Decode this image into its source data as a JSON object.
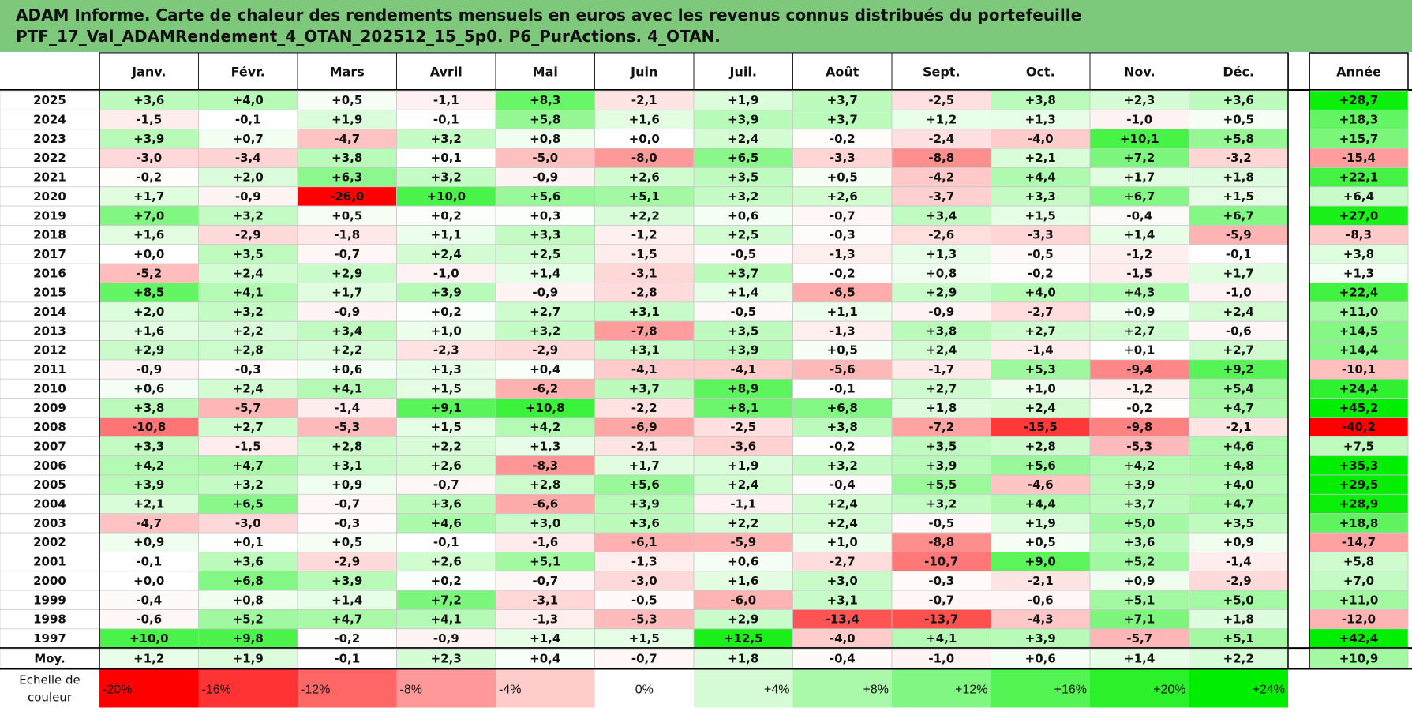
{
  "title_line1": "ADAM Informe. Carte de chaleur des rendements mensuels en euros avec les revenus connus distribués du portefeuille",
  "title_line2": "PTF_17_Val_ADAMRendement_4_OTAN_202512_15_5p0. P6_PurActions. 4_OTAN.",
  "chart_data": {
    "type": "heatmap",
    "months": [
      "Janv.",
      "Févr.",
      "Mars",
      "Avril",
      "Mai",
      "Juin",
      "Juil.",
      "Août",
      "Sept.",
      "Oct.",
      "Nov.",
      "Déc."
    ],
    "year_header": "Année",
    "rows": [
      {
        "label": "2025",
        "months": [
          3.6,
          4.0,
          0.5,
          -1.1,
          8.3,
          -2.1,
          1.9,
          3.7,
          -2.5,
          3.8,
          2.3,
          3.6
        ],
        "year": 28.7
      },
      {
        "label": "2024",
        "months": [
          -1.5,
          -0.1,
          1.9,
          -0.1,
          5.8,
          1.6,
          3.9,
          3.7,
          1.2,
          1.3,
          -1.0,
          0.5
        ],
        "year": 18.3
      },
      {
        "label": "2023",
        "months": [
          3.9,
          0.7,
          -4.7,
          3.2,
          0.8,
          0.0,
          2.4,
          -0.2,
          -2.4,
          -4.0,
          10.1,
          5.8
        ],
        "year": 15.7
      },
      {
        "label": "2022",
        "months": [
          -3.0,
          -3.4,
          3.8,
          0.1,
          -5.0,
          -8.0,
          6.5,
          -3.3,
          -8.8,
          2.1,
          7.2,
          -3.2
        ],
        "year": -15.4
      },
      {
        "label": "2021",
        "months": [
          -0.2,
          2.0,
          6.3,
          3.2,
          -0.9,
          2.6,
          3.5,
          0.5,
          -4.2,
          4.4,
          1.7,
          1.8
        ],
        "year": 22.1
      },
      {
        "label": "2020",
        "months": [
          1.7,
          -0.9,
          -26.0,
          10.0,
          5.6,
          5.1,
          3.2,
          2.6,
          -3.7,
          3.3,
          6.7,
          1.5
        ],
        "year": 6.4
      },
      {
        "label": "2019",
        "months": [
          7.0,
          3.2,
          0.5,
          0.2,
          0.3,
          2.2,
          0.6,
          -0.7,
          3.4,
          1.5,
          -0.4,
          6.7
        ],
        "year": 27.0
      },
      {
        "label": "2018",
        "months": [
          1.6,
          -2.9,
          -1.8,
          1.1,
          3.3,
          -1.2,
          2.5,
          -0.3,
          -2.6,
          -3.3,
          1.4,
          -5.9
        ],
        "year": -8.3
      },
      {
        "label": "2017",
        "months": [
          0.0,
          3.5,
          -0.7,
          2.4,
          2.5,
          -1.5,
          -0.5,
          -1.3,
          1.3,
          -0.5,
          -1.2,
          -0.1
        ],
        "year": 3.8
      },
      {
        "label": "2016",
        "months": [
          -5.2,
          2.4,
          2.9,
          -1.0,
          1.4,
          -3.1,
          3.7,
          -0.2,
          0.8,
          -0.2,
          -1.5,
          1.7
        ],
        "year": 1.3
      },
      {
        "label": "2015",
        "months": [
          8.5,
          4.1,
          1.7,
          3.9,
          -0.9,
          -2.8,
          1.4,
          -6.5,
          2.9,
          4.0,
          4.3,
          -1.0
        ],
        "year": 22.4
      },
      {
        "label": "2014",
        "months": [
          2.0,
          3.2,
          -0.9,
          0.2,
          2.7,
          3.1,
          -0.5,
          1.1,
          -0.9,
          -2.7,
          0.9,
          2.4
        ],
        "year": 11.0
      },
      {
        "label": "2013",
        "months": [
          1.6,
          2.2,
          3.4,
          1.0,
          3.2,
          -7.8,
          3.5,
          -1.3,
          3.8,
          2.7,
          2.7,
          -0.6
        ],
        "year": 14.5
      },
      {
        "label": "2012",
        "months": [
          2.9,
          2.8,
          2.2,
          -2.3,
          -2.9,
          3.1,
          3.9,
          0.5,
          2.4,
          -1.4,
          0.1,
          2.7
        ],
        "year": 14.4
      },
      {
        "label": "2011",
        "months": [
          -0.9,
          -0.3,
          0.6,
          1.3,
          0.4,
          -4.1,
          -4.1,
          -5.6,
          -1.7,
          5.3,
          -9.4,
          9.2
        ],
        "year": -10.1
      },
      {
        "label": "2010",
        "months": [
          0.6,
          2.4,
          4.1,
          1.5,
          -6.2,
          3.7,
          8.9,
          -0.1,
          2.7,
          1.0,
          -1.2,
          5.4
        ],
        "year": 24.4
      },
      {
        "label": "2009",
        "months": [
          3.8,
          -5.7,
          -1.4,
          9.1,
          10.8,
          -2.2,
          8.1,
          6.8,
          1.8,
          2.4,
          -0.2,
          4.7
        ],
        "year": 45.2
      },
      {
        "label": "2008",
        "months": [
          -10.8,
          2.7,
          -5.3,
          1.5,
          4.2,
          -6.9,
          -2.5,
          3.8,
          -7.2,
          -15.5,
          -9.8,
          -2.1
        ],
        "year": -40.2
      },
      {
        "label": "2007",
        "months": [
          3.3,
          -1.5,
          2.8,
          2.2,
          1.3,
          -2.1,
          -3.6,
          -0.2,
          3.5,
          2.8,
          -5.3,
          4.6
        ],
        "year": 7.5
      },
      {
        "label": "2006",
        "months": [
          4.2,
          4.7,
          3.1,
          2.6,
          -8.3,
          1.7,
          1.9,
          3.2,
          3.9,
          5.6,
          4.2,
          4.8
        ],
        "year": 35.3
      },
      {
        "label": "2005",
        "months": [
          3.9,
          3.2,
          0.9,
          -0.7,
          2.8,
          5.6,
          2.4,
          -0.4,
          5.5,
          -4.6,
          3.9,
          4.0
        ],
        "year": 29.5
      },
      {
        "label": "2004",
        "months": [
          2.1,
          6.5,
          -0.7,
          3.6,
          -6.6,
          3.9,
          -1.1,
          2.4,
          3.2,
          4.4,
          3.7,
          4.7
        ],
        "year": 28.9
      },
      {
        "label": "2003",
        "months": [
          -4.7,
          -3.0,
          -0.3,
          4.6,
          3.0,
          3.6,
          2.2,
          2.4,
          -0.5,
          1.9,
          5.0,
          3.5
        ],
        "year": 18.8
      },
      {
        "label": "2002",
        "months": [
          0.9,
          0.1,
          0.5,
          -0.1,
          -1.6,
          -6.1,
          -5.9,
          1.0,
          -8.8,
          0.5,
          3.6,
          0.9
        ],
        "year": -14.7
      },
      {
        "label": "2001",
        "months": [
          -0.1,
          3.6,
          -2.9,
          2.6,
          5.1,
          -1.3,
          0.6,
          -2.7,
          -10.7,
          9.0,
          5.2,
          -1.4
        ],
        "year": 5.8
      },
      {
        "label": "2000",
        "months": [
          0.0,
          6.8,
          3.9,
          0.2,
          -0.7,
          -3.0,
          1.6,
          3.0,
          -0.3,
          -2.1,
          0.9,
          -2.9
        ],
        "year": 7.0
      },
      {
        "label": "1999",
        "months": [
          -0.4,
          0.8,
          1.4,
          7.2,
          -3.1,
          -0.5,
          -6.0,
          3.1,
          -0.7,
          -0.6,
          5.1,
          5.0
        ],
        "year": 11.0
      },
      {
        "label": "1998",
        "months": [
          -0.6,
          5.2,
          4.7,
          4.1,
          -1.3,
          -5.3,
          2.9,
          -13.4,
          -13.7,
          -4.3,
          7.1,
          1.8
        ],
        "year": -12.0
      },
      {
        "label": "1997",
        "months": [
          10.0,
          9.8,
          -0.2,
          -0.9,
          1.4,
          1.5,
          12.5,
          -4.0,
          4.1,
          3.9,
          -5.7,
          5.1
        ],
        "year": 42.4
      }
    ],
    "average": {
      "label": "Moy.",
      "months": [
        1.2,
        1.9,
        -0.1,
        2.3,
        0.4,
        -0.7,
        1.8,
        -0.4,
        -1.0,
        0.6,
        1.4,
        2.2
      ],
      "year": 10.9
    },
    "scale": {
      "label_line1": "Echelle de",
      "label_line2": "couleur",
      "labels": [
        "-20%",
        "-16%",
        "-12%",
        "-8%",
        "-4%",
        "0%",
        "+4%",
        "+8%",
        "+12%",
        "+16%",
        "+20%",
        "+24%"
      ],
      "values": [
        -20,
        -16,
        -12,
        -8,
        -4,
        0,
        4,
        8,
        12,
        16,
        20,
        24
      ]
    },
    "colors": {
      "negative_max": "#ff0000",
      "neutral": "#ffffff",
      "positive_max": "#00ee00",
      "title_bg": "#7ec87c"
    }
  }
}
